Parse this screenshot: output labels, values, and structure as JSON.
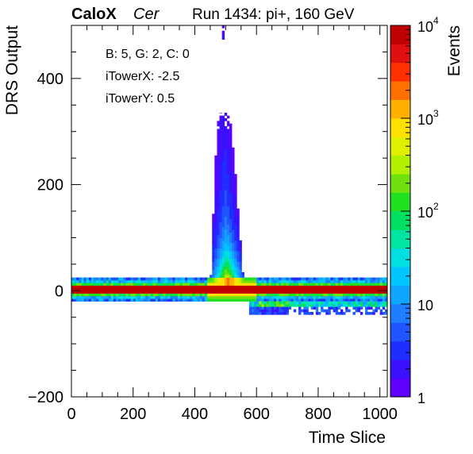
{
  "header": {
    "brand": "CaloX",
    "channel": "Cer",
    "run": "Run 1434: pi+, 160 GeV"
  },
  "info_box": {
    "line1": "B: 5, G: 2, C: 0",
    "line2": "iTowerX: -2.5",
    "line3": "iTowerY: 0.5"
  },
  "chart_data": {
    "type": "heatmap",
    "title": "",
    "xlabel": "Time Slice",
    "ylabel": "DRS Output",
    "zlabel": "Events",
    "xlim": [
      0,
      1024
    ],
    "ylim": [
      -200,
      500
    ],
    "zlim": [
      1,
      10000
    ],
    "z_log": true,
    "x_ticks": [
      "0",
      "200",
      "400",
      "600",
      "800",
      "1000"
    ],
    "y_ticks": [
      "−200",
      "0",
      "200",
      "400"
    ],
    "z_ticks": [
      {
        "base": "1",
        "exp": ""
      },
      {
        "base": "10",
        "exp": ""
      },
      {
        "base": "10",
        "exp": "2"
      },
      {
        "base": "10",
        "exp": "3"
      },
      {
        "base": "10",
        "exp": "4"
      }
    ],
    "palette": [
      "#5f00ff",
      "#3a10ff",
      "#1f2dff",
      "#1f55ff",
      "#1f7dff",
      "#10a5ff",
      "#00c5ff",
      "#00e0e0",
      "#00e6a0",
      "#00e060",
      "#20e020",
      "#70e010",
      "#b0f000",
      "#e0f000",
      "#ffe000",
      "#ffb000",
      "#ff7000",
      "#ff3000",
      "#e01010",
      "#c00000"
    ],
    "regions": [
      {
        "name": "pedestal band",
        "x": [
          0,
          1024
        ],
        "y": [
          -20,
          25
        ],
        "events": "~10-100"
      },
      {
        "name": "pedestal core",
        "x": [
          0,
          1024
        ],
        "y": [
          -5,
          10
        ],
        "events": "~10^4"
      },
      {
        "name": "signal pulse",
        "x": [
          450,
          580
        ],
        "y": [
          0,
          500
        ],
        "peak_x": 505,
        "events": "~1-10^3"
      },
      {
        "name": "negative undershoot",
        "x": [
          570,
          1024
        ],
        "y": [
          -45,
          -20
        ],
        "events": "~1-10"
      }
    ]
  }
}
